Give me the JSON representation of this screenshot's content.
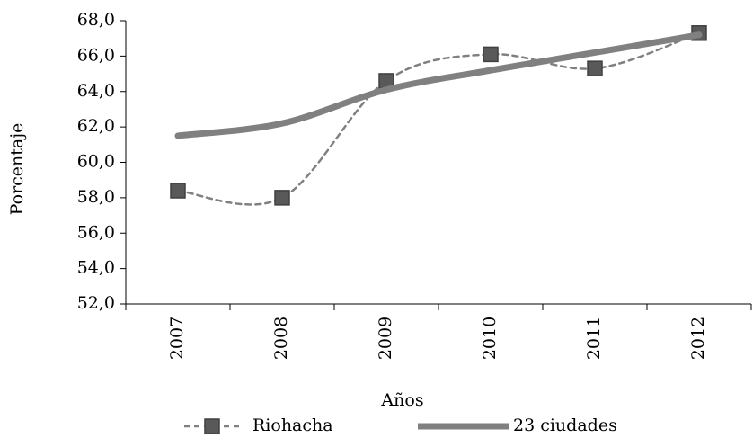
{
  "chart_data": {
    "type": "line",
    "xlabel": "Años",
    "ylabel": "Porcentaje",
    "categories": [
      "2007",
      "2008",
      "2009",
      "2010",
      "2011",
      "2012"
    ],
    "series": [
      {
        "name": "Riohacha",
        "color": "#808080",
        "values": [
          58.4,
          58.0,
          64.6,
          66.1,
          65.3,
          67.3
        ]
      },
      {
        "name": "23 ciudades",
        "color": "#808080",
        "values": [
          61.5,
          62.2,
          64.1,
          65.2,
          66.2,
          67.2
        ]
      }
    ],
    "ylim": [
      52,
      68
    ],
    "yticks": [
      {
        "value": 52,
        "label": "52,0"
      },
      {
        "value": 54,
        "label": "54,0"
      },
      {
        "value": 56,
        "label": "56,0"
      },
      {
        "value": 58,
        "label": "58,0"
      },
      {
        "value": 60,
        "label": "60,0"
      },
      {
        "value": 62,
        "label": "62,0"
      },
      {
        "value": 64,
        "label": "64,0"
      },
      {
        "value": 66,
        "label": "66,0"
      },
      {
        "value": 68,
        "label": "68,0"
      }
    ],
    "grid": false,
    "legend": "bottom"
  }
}
